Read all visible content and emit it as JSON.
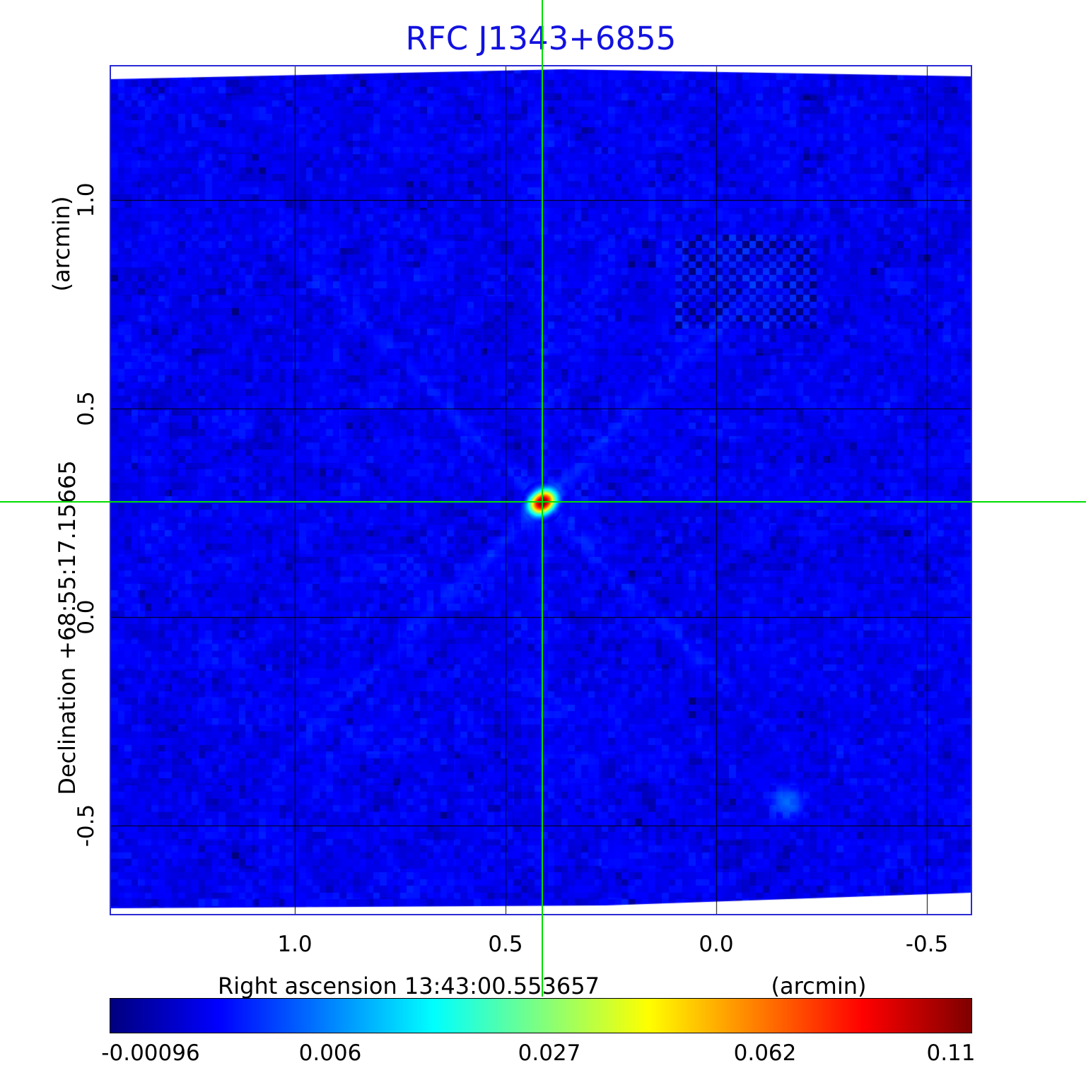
{
  "title": "RFC J1343+6855",
  "colors": {
    "title": "#1212e0",
    "plot_border": "#2b2bd5",
    "crosshair": "#00dd00",
    "grid": "#000000",
    "colorbar_border": "#000000"
  },
  "x_axis": {
    "name": "Right ascension  13:43:00.553657",
    "unit": "(arcmin)",
    "ticks": [
      "1.0",
      "0.5",
      "0.0",
      "-0.5"
    ],
    "tick_values": [
      1.0,
      0.5,
      0.0,
      -0.5
    ]
  },
  "y_axis": {
    "name": "Declination  +68:55:17.15665",
    "unit": "(arcmin)",
    "ticks": [
      "1.0",
      "0.5",
      "0.0",
      "-0.5"
    ],
    "tick_values": [
      1.0,
      0.5,
      0.0,
      -0.5
    ]
  },
  "colorbar": {
    "tick_labels": [
      "-0.00096",
      "0.006",
      "0.027",
      "0.062",
      "0.11"
    ],
    "tick_values": [
      -0.00096,
      0.006,
      0.027,
      0.062,
      0.11
    ],
    "colormap": "jet",
    "scale": "sqrt"
  },
  "chart_data": {
    "type": "heatmap",
    "title": "RFC J1343+6855",
    "xlabel": "Right ascension  13:43:00.553657 (arcmin)",
    "ylabel": "Declination  +68:55:17.15665 (arcmin)",
    "x_range_arcmin": [
      1.44,
      -0.61
    ],
    "y_range_arcmin": [
      -0.72,
      1.32
    ],
    "x_ticks_arcmin": [
      1.0,
      0.5,
      0.0,
      -0.5
    ],
    "y_ticks_arcmin": [
      1.0,
      0.5,
      0.0,
      -0.5
    ],
    "grid": true,
    "colormap": "jet",
    "intensity_scale": "sqrt",
    "intensity_range": [
      -0.00096,
      0.11
    ],
    "colorbar_ticks": [
      -0.00096,
      0.006,
      0.027,
      0.062,
      0.11
    ],
    "background_noise_sigma": 0.0013,
    "sources": [
      {
        "name": "primary-compact-source",
        "x_arcmin": 0.413,
        "y_arcmin": 0.276,
        "peak_intensity": 0.11
      },
      {
        "name": "faint-secondary-smudge",
        "x_arcmin": -0.171,
        "y_arcmin": -0.444,
        "peak_intensity": 0.004
      }
    ],
    "crosshair_arcmin": {
      "x": 0.413,
      "y": 0.276
    },
    "artifacts": [
      "diagonal sidelobe streaks radiating from source",
      "faint checkerboard patch upper right",
      "white slanted field edges top and bottom"
    ]
  }
}
